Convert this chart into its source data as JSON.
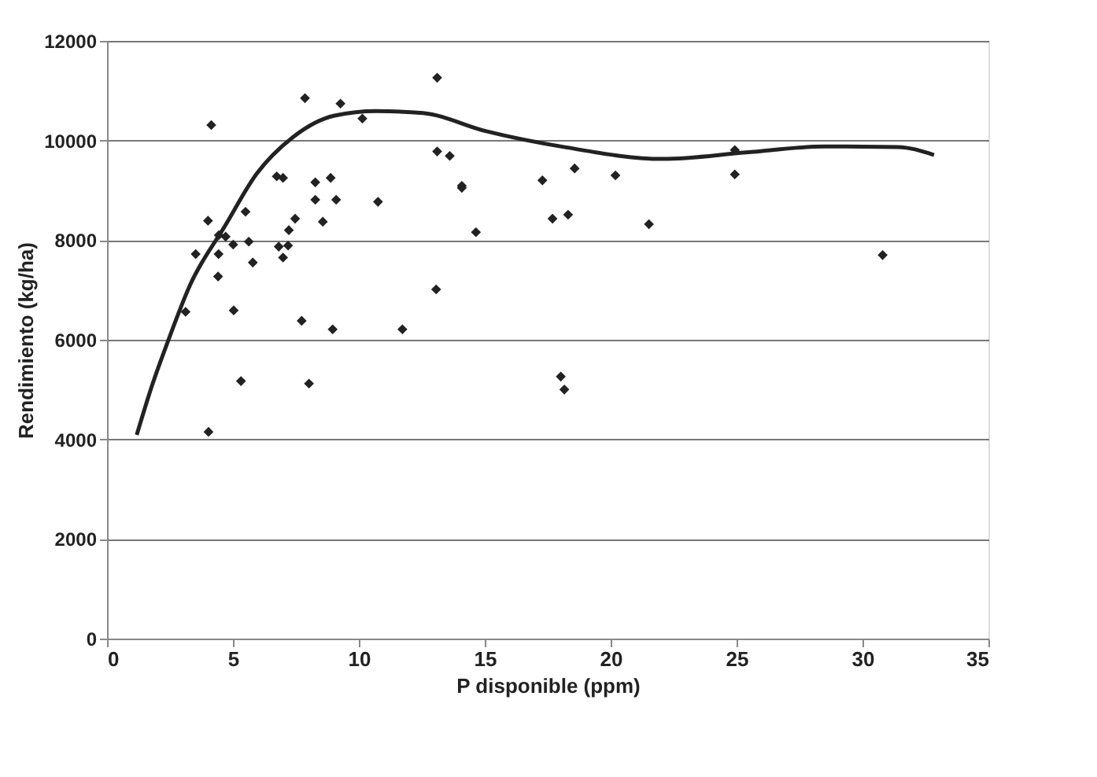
{
  "chart_data": {
    "type": "scatter",
    "xlabel": "P disponible (ppm)",
    "ylabel": "Rendimiento (kg/ha)",
    "xlim": [
      0,
      35
    ],
    "xticks": [
      0,
      5,
      10,
      15,
      20,
      25,
      30,
      35
    ],
    "ylim": [
      0,
      12000
    ],
    "yticks": [
      0,
      2000,
      4000,
      6000,
      8000,
      10000,
      12000
    ],
    "grid": "y",
    "marker": "diamond",
    "series": [
      {
        "color": "#222222",
        "x": [
          4.14,
          7.86,
          9.27,
          10.14,
          6.74,
          6.99,
          8.27,
          8.88,
          8.27,
          9.1,
          10.76,
          4.01,
          5.5,
          8.57,
          7.47,
          7.22,
          4.44,
          4.71,
          3.52,
          4.43,
          5.01,
          5.63,
          5.79,
          6.82,
          6.99,
          7.19,
          4.41,
          3.12,
          5.03,
          7.73,
          8.96,
          5.32,
          8.02,
          4.03,
          13.11,
          13.11,
          13.61,
          14.09,
          14.09,
          14.65,
          13.07,
          11.73,
          17.29,
          18.57,
          20.19,
          17.69,
          18.31,
          21.52,
          24.93,
          24.93,
          30.8,
          18.02,
          18.16
        ],
        "values": [
          10310,
          10850,
          10740,
          10440,
          9280,
          9250,
          9160,
          9250,
          8810,
          8810,
          8770,
          8390,
          8570,
          8370,
          8430,
          8200,
          8100,
          8070,
          7720,
          7720,
          7910,
          7970,
          7550,
          7870,
          7650,
          7890,
          7270,
          6560,
          6590,
          6380,
          6210,
          5170,
          5120,
          4150,
          11260,
          9780,
          9690,
          9090,
          9050,
          8160,
          7010,
          6210,
          9200,
          9440,
          9300,
          8430,
          8510,
          8320,
          9810,
          9320,
          7700,
          5260,
          5000
        ]
      },
      {
        "type": "line",
        "color": "#222222",
        "marker": "none",
        "line_style": "solid",
        "x": [
          1.18,
          1.8,
          2.42,
          3.3,
          4.69,
          5.94,
          7.39,
          9.04,
          10.69,
          12.55,
          15.03,
          18.14,
          22.07,
          25.39,
          28.49,
          31.39,
          32.84
        ],
        "values": [
          4090,
          5100,
          5970,
          7100,
          8290,
          9330,
          10070,
          10500,
          10590,
          10550,
          10190,
          9870,
          9630,
          9760,
          9880,
          9870,
          9710
        ]
      }
    ]
  }
}
